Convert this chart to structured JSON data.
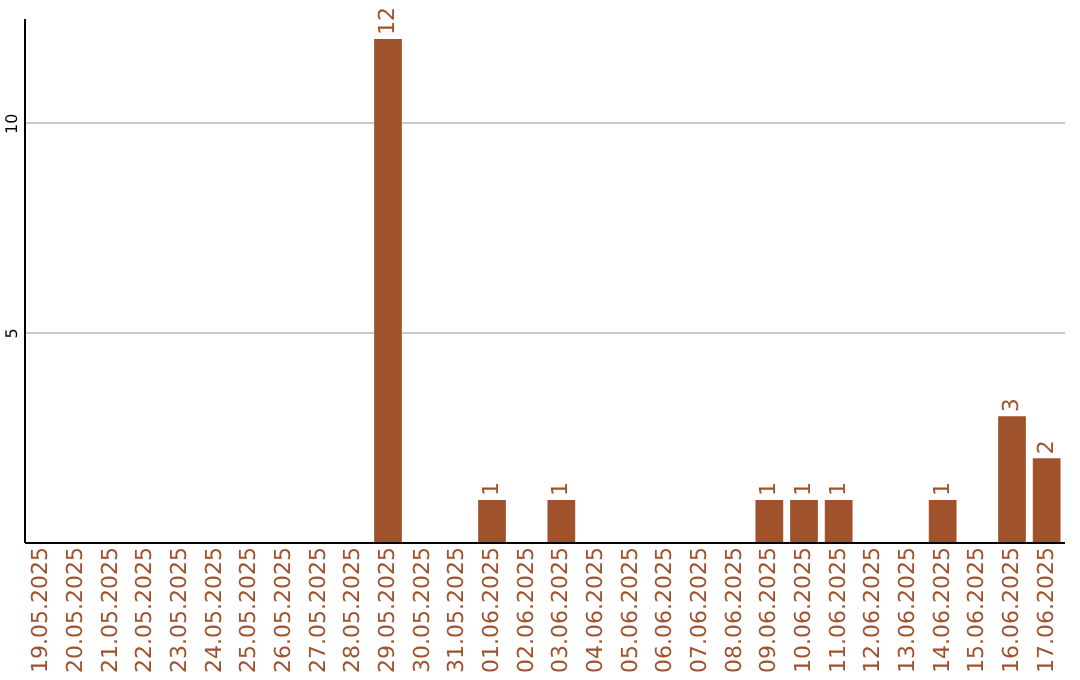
{
  "chart_data": {
    "type": "bar",
    "categories": [
      "19.05.2025",
      "20.05.2025",
      "21.05.2025",
      "22.05.2025",
      "23.05.2025",
      "24.05.2025",
      "25.05.2025",
      "26.05.2025",
      "27.05.2025",
      "28.05.2025",
      "29.05.2025",
      "30.05.2025",
      "31.05.2025",
      "01.06.2025",
      "02.06.2025",
      "03.06.2025",
      "04.06.2025",
      "05.06.2025",
      "06.06.2025",
      "07.06.2025",
      "08.06.2025",
      "09.06.2025",
      "10.06.2025",
      "11.06.2025",
      "12.06.2025",
      "13.06.2025",
      "14.06.2025",
      "15.06.2025",
      "16.06.2025",
      "17.06.2025"
    ],
    "values": [
      0,
      0,
      0,
      0,
      0,
      0,
      0,
      0,
      0,
      0,
      12,
      0,
      0,
      1,
      0,
      1,
      0,
      0,
      0,
      0,
      0,
      1,
      1,
      1,
      0,
      0,
      1,
      0,
      3,
      2
    ],
    "value_labels": [
      null,
      null,
      null,
      null,
      null,
      null,
      null,
      null,
      null,
      null,
      "12",
      null,
      null,
      "1",
      null,
      "1",
      null,
      null,
      null,
      null,
      null,
      "1",
      "1",
      "1",
      null,
      null,
      "1",
      null,
      "3",
      "2"
    ],
    "color": "#a0522d",
    "ylim": [
      0,
      12.5
    ],
    "yticks": [
      5,
      10
    ],
    "grid": "y"
  }
}
